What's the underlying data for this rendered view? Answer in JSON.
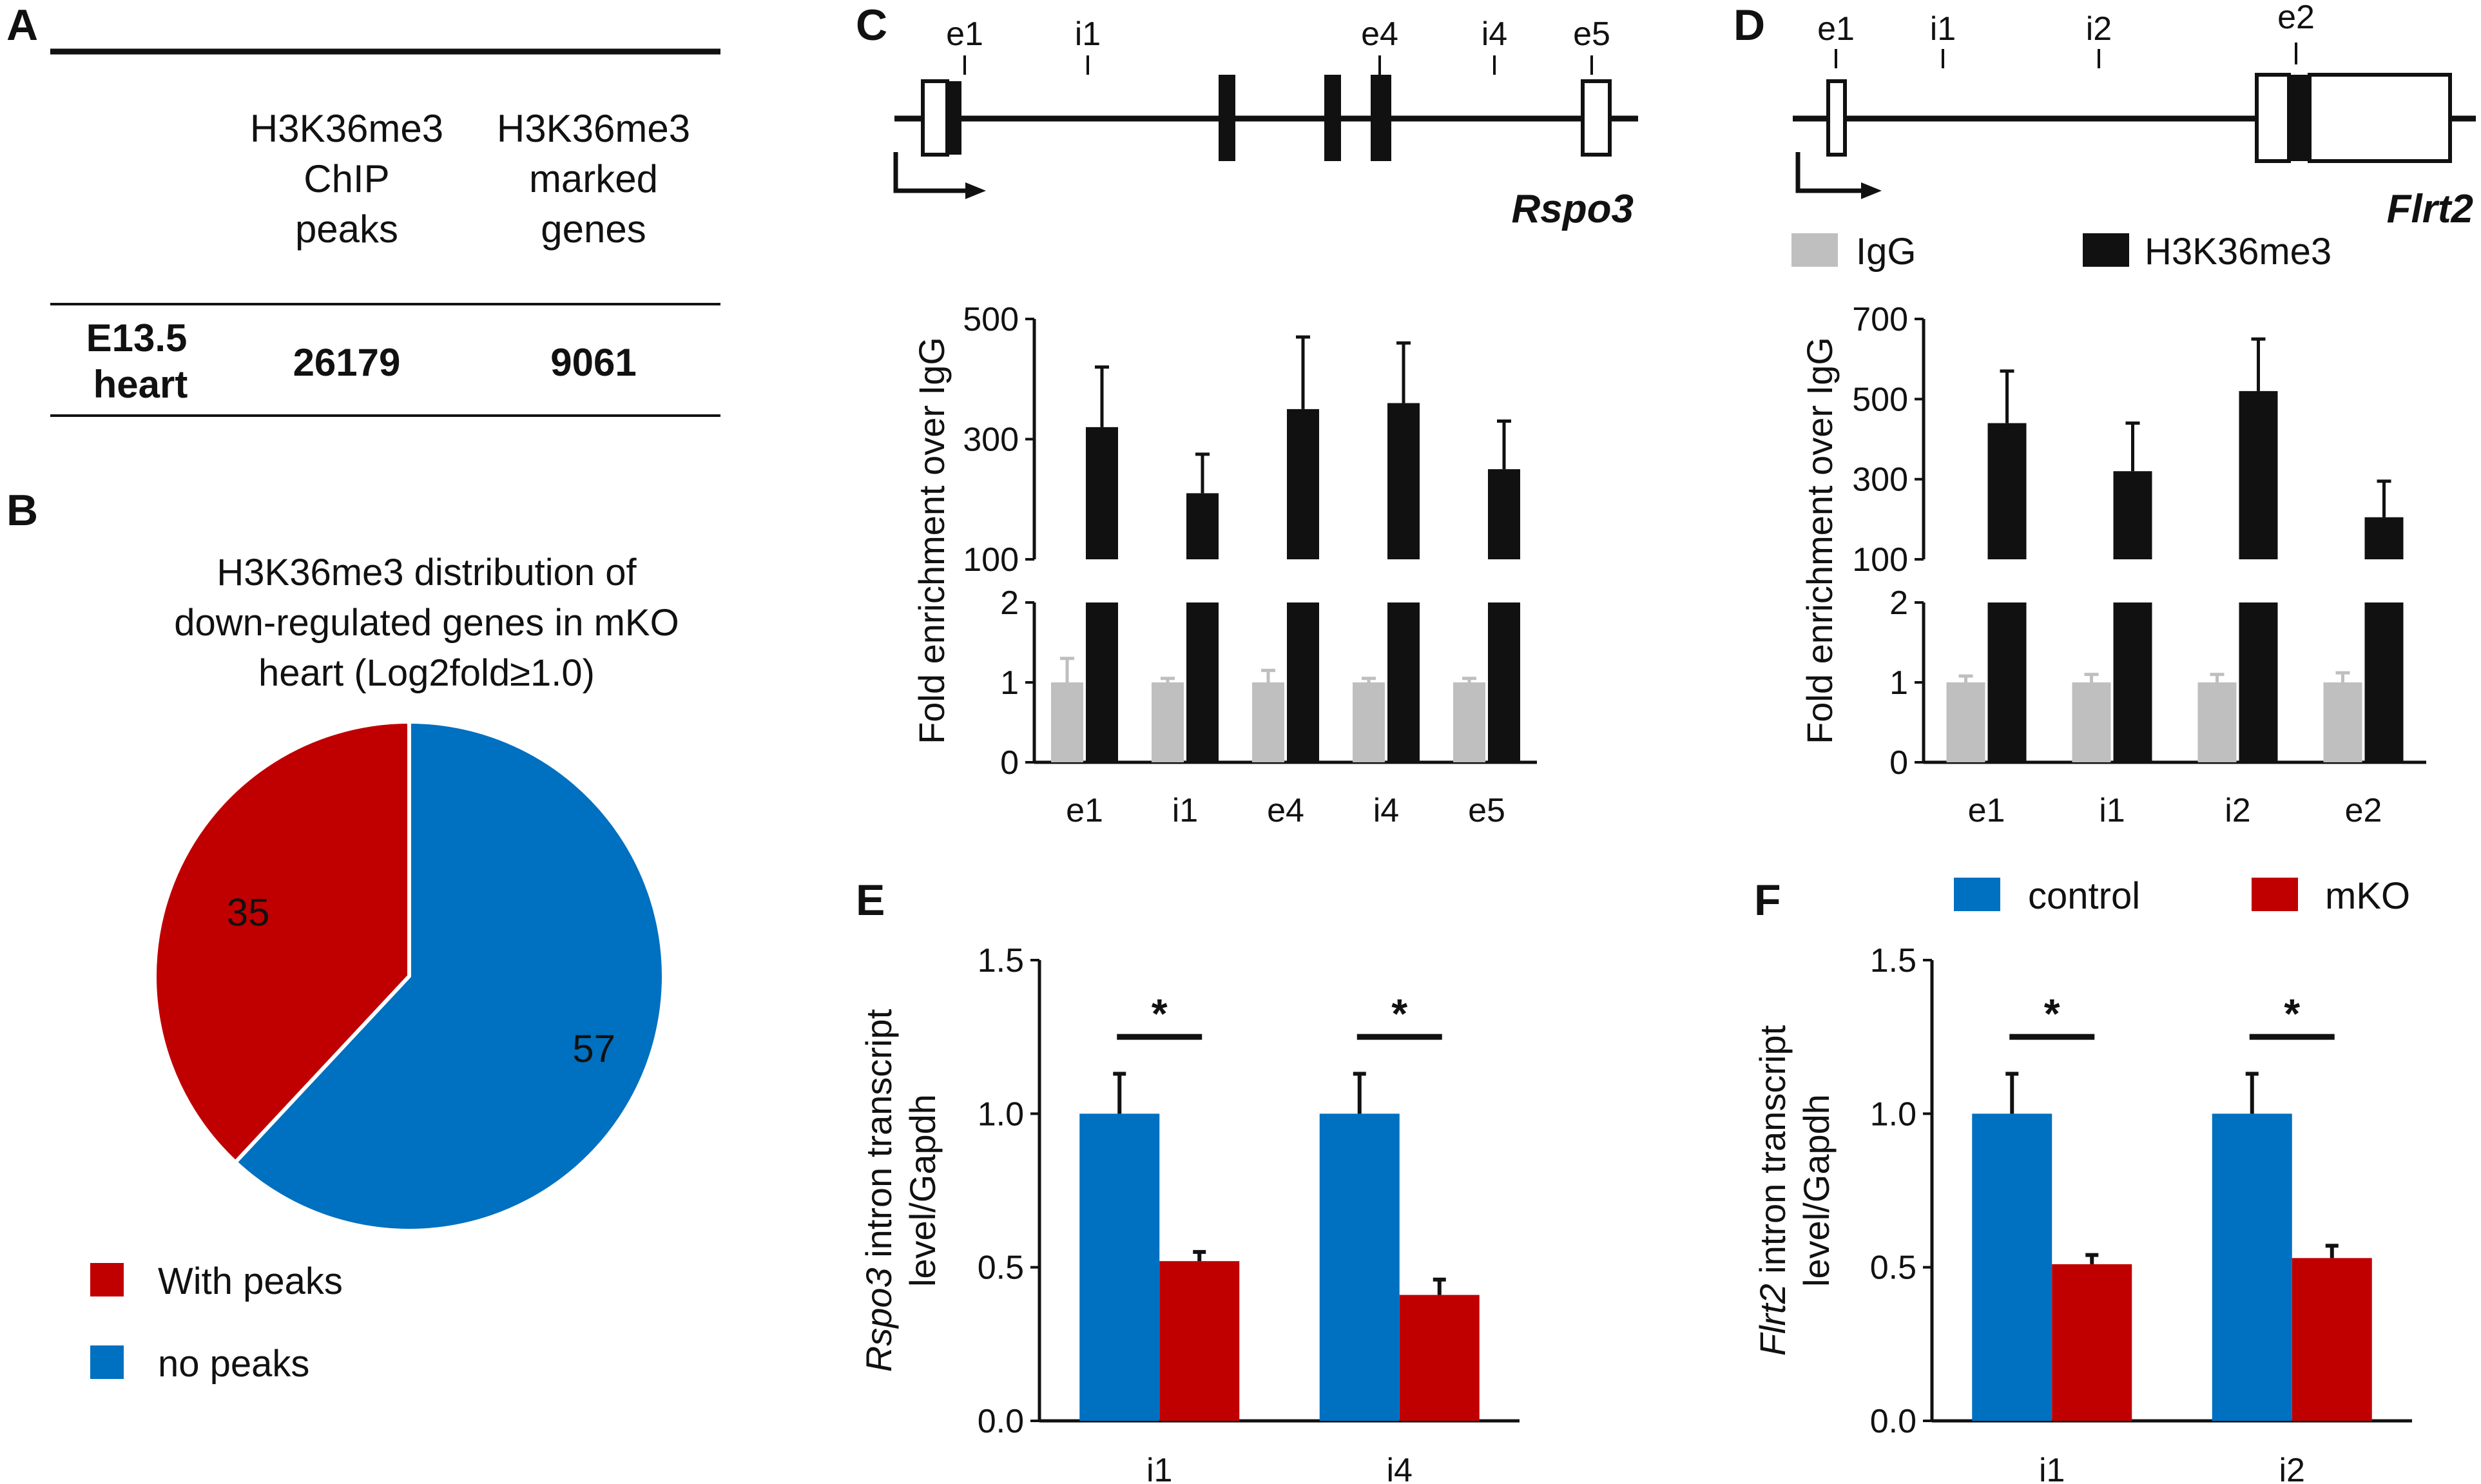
{
  "colors": {
    "red": "#c00000",
    "blue": "#0070c0",
    "black": "#111111",
    "gray": "#bfbfbf",
    "white": "#ffffff"
  },
  "panel_labels": {
    "A": "A",
    "B": "B",
    "C": "C",
    "D": "D",
    "E": "E",
    "F": "F"
  },
  "table": {
    "headers": [
      "",
      "H3K36me3 ChIP peaks",
      "H3K36me3 marked genes"
    ],
    "header_lines": {
      "peaks": [
        "H3K36me3",
        "ChIP",
        "peaks"
      ],
      "genes": [
        "H3K36me3",
        "marked",
        "genes"
      ]
    },
    "row": {
      "label_lines": [
        "E13.5",
        "heart"
      ],
      "peaks": "26179",
      "genes": "9061"
    }
  },
  "gene_maps": {
    "rspo3": {
      "name": "Rspo3",
      "labels": [
        "e1",
        "i1",
        "e4",
        "i4",
        "e5"
      ]
    },
    "flrt2": {
      "name": "Flrt2",
      "labels": [
        "e1",
        "i1",
        "i2",
        "e2"
      ]
    }
  },
  "chart_data": [
    {
      "id": "B",
      "type": "pie",
      "title_lines": [
        "H3K36me3 distribution of",
        "down-regulated genes in mKO",
        "heart (Log2fold≥1.0)"
      ],
      "slices": [
        {
          "label": "With peaks",
          "value": 35
        },
        {
          "label": "no peaks",
          "value": 57
        }
      ],
      "legend": [
        "With peaks",
        "no peaks"
      ],
      "legend_position": "bottom-left"
    },
    {
      "id": "C",
      "type": "bar",
      "gene": "Rspo3",
      "categories": [
        "e1",
        "i1",
        "e4",
        "i4",
        "e5"
      ],
      "series": [
        {
          "name": "IgG",
          "values": [
            1.0,
            1.0,
            1.0,
            1.0,
            1.0
          ],
          "errors": [
            0.3,
            0.05,
            0.15,
            0.05,
            0.05
          ]
        },
        {
          "name": "H3K36me3",
          "values": [
            320,
            210,
            350,
            360,
            250
          ],
          "errors": [
            100,
            65,
            120,
            100,
            80
          ]
        }
      ],
      "ylabel": "Fold enrichment over IgG",
      "axis_break": true,
      "y_lower": {
        "ylim": [
          0,
          2
        ],
        "ticks": [
          "0",
          "1",
          "2"
        ]
      },
      "y_upper": {
        "ylim": [
          100,
          500
        ],
        "ticks": [
          "100",
          "300",
          "500"
        ]
      },
      "legend": [
        "IgG",
        "H3K36me3"
      ]
    },
    {
      "id": "D",
      "type": "bar",
      "gene": "Flrt2",
      "categories": [
        "e1",
        "i1",
        "i2",
        "e2"
      ],
      "series": [
        {
          "name": "IgG",
          "values": [
            1.0,
            1.0,
            1.0,
            1.0
          ],
          "errors": [
            0.08,
            0.1,
            0.1,
            0.12
          ]
        },
        {
          "name": "H3K36me3",
          "values": [
            440,
            320,
            520,
            205
          ],
          "errors": [
            130,
            120,
            130,
            90
          ]
        }
      ],
      "ylabel": "Fold enrichment over IgG",
      "axis_break": true,
      "y_lower": {
        "ylim": [
          0,
          2
        ],
        "ticks": [
          "0",
          "1",
          "2"
        ]
      },
      "y_upper": {
        "ylim": [
          100,
          700
        ],
        "ticks": [
          "100",
          "300",
          "500",
          "700"
        ]
      },
      "legend": [
        "IgG",
        "H3K36me3"
      ],
      "legend_position": "top"
    },
    {
      "id": "E",
      "type": "bar",
      "gene": "Rspo3",
      "categories": [
        "i1",
        "i4"
      ],
      "series": [
        {
          "name": "control",
          "values": [
            1.0,
            1.0
          ],
          "errors": [
            0.13,
            0.13
          ]
        },
        {
          "name": "mKO",
          "values": [
            0.52,
            0.41
          ],
          "errors": [
            0.03,
            0.05
          ]
        }
      ],
      "ylabel_italic": "Rspo3",
      "ylabel_rest": " intron transcript",
      "ylabel_line2": "level/Gapdh",
      "ylim": [
        0,
        1.5
      ],
      "yticks": [
        "0.0",
        "0.5",
        "1.0",
        "1.5"
      ],
      "significance": [
        "*",
        "*"
      ]
    },
    {
      "id": "F",
      "type": "bar",
      "gene": "Flrt2",
      "categories": [
        "i1",
        "i2"
      ],
      "series": [
        {
          "name": "control",
          "values": [
            1.0,
            1.0
          ],
          "errors": [
            0.13,
            0.13
          ]
        },
        {
          "name": "mKO",
          "values": [
            0.51,
            0.53
          ],
          "errors": [
            0.03,
            0.04
          ]
        }
      ],
      "ylabel_italic": "Flrt2",
      "ylabel_rest": " intron transcript",
      "ylabel_line2": "level/Gapdh",
      "ylim": [
        0,
        1.5
      ],
      "yticks": [
        "0.0",
        "0.5",
        "1.0",
        "1.5"
      ],
      "significance": [
        "*",
        "*"
      ],
      "legend": [
        "control",
        "mKO"
      ],
      "legend_position": "top"
    }
  ]
}
